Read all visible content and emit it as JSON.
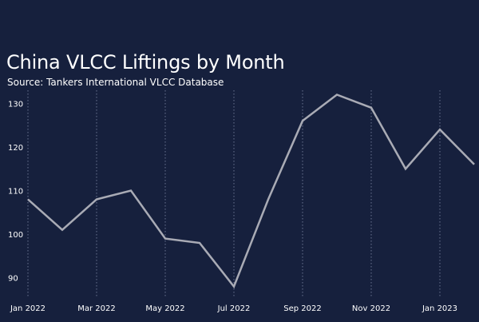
{
  "chart_data": {
    "type": "line",
    "title": "China VLCC Liftings by Month",
    "subtitle": "Source: Tankers International VLCC Database",
    "x": [
      "2022-01",
      "2022-02",
      "2022-03",
      "2022-04",
      "2022-05",
      "2022-06",
      "2022-07",
      "2022-08",
      "2022-09",
      "2022-10",
      "2022-11",
      "2022-12",
      "2023-01",
      "2023-02"
    ],
    "x_tick_labels": [
      "Jan 2022",
      "Mar 2022",
      "May 2022",
      "Jul 2022",
      "Sep 2022",
      "Nov 2022",
      "Jan 2023"
    ],
    "y_ticks": [
      90,
      100,
      110,
      120,
      130
    ],
    "ylim": [
      85,
      133
    ],
    "series": [
      {
        "values": [
          108,
          101,
          108,
          110,
          99,
          98,
          88,
          108,
          126,
          132,
          129,
          115,
          124,
          116
        ]
      }
    ],
    "grid": "vertical dotted lines at labelled months",
    "colors": {
      "background": "#16203d",
      "line": "#a9abb5",
      "grid": "#6b7391",
      "text": "#ffffff"
    }
  }
}
